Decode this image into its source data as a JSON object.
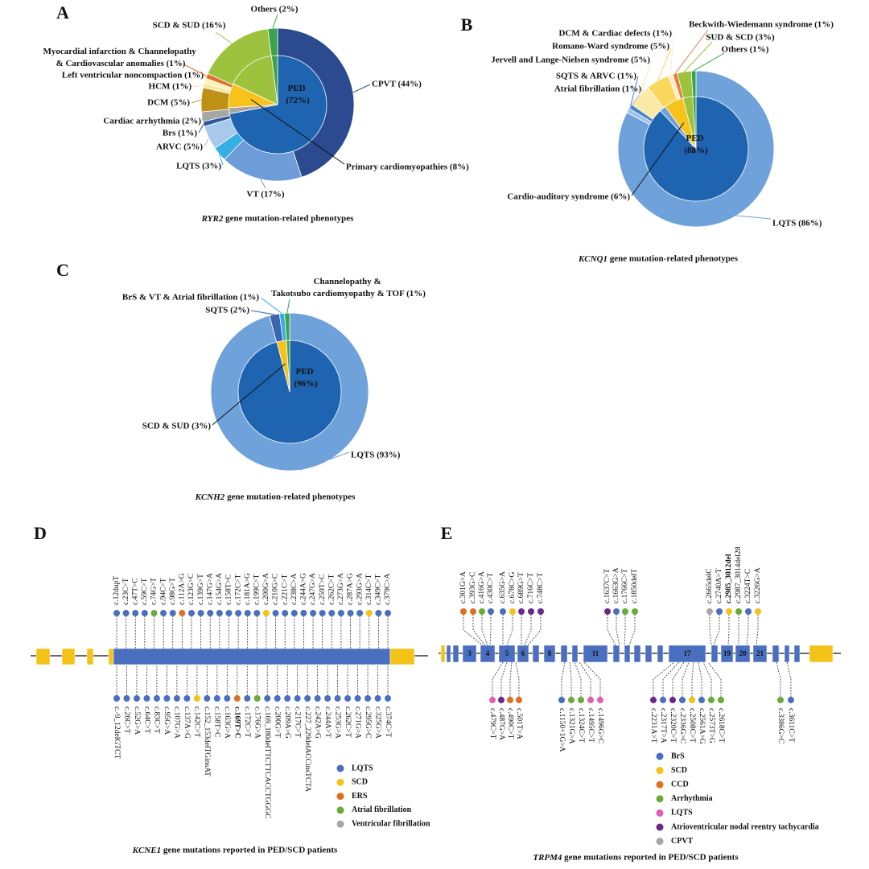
{
  "chart_data": [
    {
      "type": "donut",
      "panel": "A",
      "caption": "RYR2 gene mutation-related phenotypes",
      "highlight_color": "#d42020",
      "outer": {
        "categories": [
          "CPVT (44%)",
          "VT (17%)",
          "LQTS (3%)",
          "ARVC (5%)",
          "Brs (1%)",
          "Cardiac arrhythmia (2%)",
          "DCM (5%)",
          "HCM (1%)",
          "Left ventricular noncompaction (1%)",
          "Myocardial infarction & Channelopathy & Cardiovascular anomalies (1%)",
          "SCD & SUD (16%)",
          "Others (2%)"
        ],
        "values": [
          44,
          17,
          3,
          5,
          1,
          2,
          5,
          1,
          1,
          1,
          16,
          2
        ],
        "colors": [
          "#2b4a8f",
          "#6d9cd8",
          "#35aee3",
          "#a9c9ec",
          "#2f5597",
          "#a6a6a6",
          "#bf9016",
          "#f6e7a2",
          "#fff2b8",
          "#e2702c",
          "#9cc23e",
          "#3aa14f"
        ],
        "highlight": [
          5
        ]
      },
      "inner": {
        "categories": [
          "PED (72%)",
          null,
          "Primary cardiomyopathies (8%)",
          null,
          null
        ],
        "values": [
          72,
          2,
          8,
          16,
          2
        ],
        "colors": [
          "#1f64b0",
          "#a6a6a6",
          "#f7c21a",
          "#9cc23e",
          "#3aa14f"
        ],
        "highlight": []
      }
    },
    {
      "type": "donut",
      "panel": "B",
      "caption": "KCNQ1 gene mutation-related phenotypes",
      "highlight_color": "#d42020",
      "outer": {
        "categories": [
          "LQTS (86%)",
          "Atrial fibrillation (1%)",
          "SQTS & ARVC (1%)",
          "Jervell and Lange-Nielsen syndrome (5%)",
          "Romano-Ward syndrome (5%)",
          "DCM & Cardiac defects (1%)",
          "Beckwith-Wiedemann syndrome (1%)",
          "SUD & SCD (3%)",
          "Others (1%)"
        ],
        "values": [
          86,
          1,
          1,
          5,
          5,
          1,
          1,
          3,
          1
        ],
        "colors": [
          "#6fa2da",
          "#9dc3ea",
          "#4a86c8",
          "#fbe9a6",
          "#f9d75c",
          "#fbeecb",
          "#e8803a",
          "#9cc23e",
          "#3aa14f"
        ],
        "highlight": [
          0
        ]
      },
      "inner": {
        "categories": [
          "PED (88%)",
          null,
          "Cardio-auditory syndrome (6%)",
          null,
          null
        ],
        "values": [
          88,
          2,
          6,
          3,
          1
        ],
        "colors": [
          "#1f64b0",
          "#6fa2da",
          "#f7c21a",
          "#9cc23e",
          "#3aa14f"
        ],
        "highlight": []
      }
    },
    {
      "type": "donut",
      "panel": "C",
      "caption": "KCNH2 gene mutation-related phenotypes",
      "highlight_color": "#d42020",
      "outer": {
        "categories": [
          "LQTS (93%)",
          "SQTS (2%)",
          "BrS & VT & Atrial fibrillation (1%)",
          "Channelopathy & Takotsubo cardiomyopathy & TOF (1%)"
        ],
        "values": [
          93,
          2,
          1,
          1
        ],
        "colors": [
          "#6fa2da",
          "#3c63b0",
          "#35aee3",
          "#3aa14f"
        ],
        "highlight": [
          0
        ]
      },
      "inner": {
        "categories": [
          "PED (96%)",
          "SCD & SUD (3%)",
          null
        ],
        "values": [
          96,
          3,
          1
        ],
        "colors": [
          "#1f64b0",
          "#f7c21a",
          "#3aa14f"
        ],
        "highlight": []
      }
    },
    {
      "type": "lollipop",
      "panel": "D",
      "caption": "KCNE1 gene mutations reported in PED/SCD patients",
      "highlight_color": "#d42020",
      "series": [
        {
          "name": "LQTS",
          "color": "#4a6fc1"
        },
        {
          "name": "SCD",
          "color": "#f5c218"
        },
        {
          "name": "ERS",
          "color": "#e07020"
        },
        {
          "name": "Atrial fibrillation",
          "color": "#6aaa3a"
        },
        {
          "name": "Ventricular fibrillation",
          "color": "#a6a6a6"
        }
      ],
      "top": [
        {
          "label": "c.12dupT",
          "group": 0
        },
        {
          "label": "c.23C>T",
          "group": 0
        },
        {
          "label": "c.47T>C",
          "group": 0
        },
        {
          "label": "c.59C>T",
          "group": 0
        },
        {
          "label": "c.74G>T",
          "group": 3
        },
        {
          "label": "c.94C>T",
          "group": 0
        },
        {
          "label": "c.98G>T",
          "group": 0
        },
        {
          "label": "c.112A>G",
          "group": 2
        },
        {
          "label": "c.123G>C",
          "group": 0
        },
        {
          "label": "c.139G>T",
          "group": 0
        },
        {
          "label": "c.147G>A",
          "group": 0
        },
        {
          "label": "c.154G>A",
          "group": 0
        },
        {
          "label": "c.158T>C",
          "group": 0
        },
        {
          "label": "c.172C>T",
          "group": 0
        },
        {
          "label": "c.181A>G",
          "group": 0
        },
        {
          "label": "c.199C>T",
          "group": 0
        },
        {
          "label": "c.200G>A",
          "group": 1
        },
        {
          "label": "c.210G>C",
          "group": 0
        },
        {
          "label": "c.221C>T",
          "group": 0
        },
        {
          "label": "c.238C>A",
          "group": 0
        },
        {
          "label": "c.244A>G",
          "group": 0
        },
        {
          "label": "c.247G>A",
          "group": 0
        },
        {
          "label": "c.259T>C",
          "group": 0
        },
        {
          "label": "c.262C>T",
          "group": 0
        },
        {
          "label": "c.273G>A",
          "group": 0
        },
        {
          "label": "c.287A>G",
          "group": 0
        },
        {
          "label": "c.293G>A",
          "group": 0
        },
        {
          "label": "c.314C>T",
          "group": 1
        },
        {
          "label": "c.349C>T",
          "group": 0
        },
        {
          "label": "c.379C>A",
          "group": 0
        }
      ],
      "bottom": [
        {
          "label": "c.-9_12delGTCT",
          "group": 0
        },
        {
          "label": "c.26C>T",
          "group": 0
        },
        {
          "label": "c.52G>A",
          "group": 0
        },
        {
          "label": "c.64C>T",
          "group": 0
        },
        {
          "label": "c.83C>T",
          "group": 0
        },
        {
          "label": "c.95G>A",
          "group": 0
        },
        {
          "label": "c.107G>A",
          "group": 0
        },
        {
          "label": "c.137A>G",
          "group": 0
        },
        {
          "label": "c.142C>T",
          "group": 1
        },
        {
          "label": "c.152_153delTGinsAT",
          "group": 0
        },
        {
          "label": "c.158T>C",
          "group": 0
        },
        {
          "label": "c.163G>A",
          "group": 0
        },
        {
          "label": "c.169T>C",
          "group": 2,
          "highlight": true
        },
        {
          "label": "c.172C>T",
          "group": 0
        },
        {
          "label": "c.176G>A",
          "group": 3
        },
        {
          "label": "c.169_180delTTCTTCACCTGGGC",
          "group": 0
        },
        {
          "label": "c.200G>T",
          "group": 0
        },
        {
          "label": "c.209A>G",
          "group": 0
        },
        {
          "label": "c.217C>T",
          "group": 0
        },
        {
          "label": "c.227_229delACCinsTCTA",
          "group": 0
        },
        {
          "label": "c.242A>G",
          "group": 0
        },
        {
          "label": "c.244A>T",
          "group": 0
        },
        {
          "label": "c.253G>A",
          "group": 0
        },
        {
          "label": "c.262C>T",
          "group": 0
        },
        {
          "label": "c.271G>A",
          "group": 0
        },
        {
          "label": "c.295G>C",
          "group": 0
        },
        {
          "label": "c.325G>A",
          "group": 0
        },
        {
          "label": "c.374C>T",
          "group": 0
        }
      ]
    },
    {
      "type": "lollipop",
      "panel": "E",
      "caption": "TRPM4 gene mutations reported in PED/SCD patients",
      "highlight_color": "#d42020",
      "exon_labels": [
        "3",
        "4",
        "5",
        "6",
        "8",
        "11",
        "17",
        "19",
        "20",
        "21"
      ],
      "series": [
        {
          "name": "BrS",
          "color": "#4a6fc1"
        },
        {
          "name": "SCD",
          "color": "#f5c218"
        },
        {
          "name": "CCD",
          "color": "#e07020"
        },
        {
          "name": "Arrhythmia",
          "color": "#6aaa3a"
        },
        {
          "name": "LQTS",
          "color": "#e060b0"
        },
        {
          "name": "Atrioventricular nodal reentry tachycardia",
          "color": "#6a2a8a"
        },
        {
          "name": "CPVT",
          "color": "#a6a6a6"
        }
      ],
      "top": [
        {
          "label": "c.301G>A",
          "group": 2
        },
        {
          "label": "c.393G>C",
          "group": 2
        },
        {
          "label": "c.416G>A",
          "group": 3
        },
        {
          "label": "c.430C>T",
          "group": 0
        },
        {
          "label": "c.635G>A",
          "group": 0
        },
        {
          "label": "c.678C>G",
          "group": 1
        },
        {
          "label": "c.689G>T",
          "group": 5
        },
        {
          "label": "c.716C>T",
          "group": 5
        },
        {
          "label": "c.748C>T",
          "group": 5
        },
        {
          "label": "c.1637C>T",
          "group": 5
        },
        {
          "label": "c.1663G>A",
          "group": 0
        },
        {
          "label": "c.1766C>T",
          "group": 3
        },
        {
          "label": "c.1850delT",
          "group": 3
        },
        {
          "label": "c.2665delC",
          "group": 6
        },
        {
          "label": "c.2740A>T",
          "group": 0
        },
        {
          "label": "c.2985_3012del",
          "group": 1,
          "highlight": true
        },
        {
          "label": "c.2987_3014del28",
          "group": 3
        },
        {
          "label": "c.3224T>C",
          "group": 0
        },
        {
          "label": "c.3226G>A",
          "group": 1
        }
      ],
      "bottom": [
        {
          "label": "c.479C>T",
          "group": 4
        },
        {
          "label": "c.487G>A",
          "group": 5
        },
        {
          "label": "c.490C>T",
          "group": 2
        },
        {
          "label": "c.501T>A",
          "group": 2
        },
        {
          "label": "c.1150+1G>A",
          "group": 0
        },
        {
          "label": "c.1321G>A",
          "group": 3
        },
        {
          "label": "c.1324C>T",
          "group": 3
        },
        {
          "label": "c.1495C>T",
          "group": 4
        },
        {
          "label": "c.1496G>C",
          "group": 4
        },
        {
          "label": "c.2231A>T",
          "group": 5
        },
        {
          "label": "c.2317T>A",
          "group": 0
        },
        {
          "label": "c.2320C>T",
          "group": 5
        },
        {
          "label": "c.2336G>C",
          "group": 0
        },
        {
          "label": "c.2508C>T",
          "group": 1
        },
        {
          "label": "c.2561A>G",
          "group": 0
        },
        {
          "label": "c.2573T>G",
          "group": 3
        },
        {
          "label": "c.2618C>T",
          "group": 3
        },
        {
          "label": "c.3386G>C",
          "group": 3
        },
        {
          "label": "c.3611C>T",
          "group": 0
        }
      ]
    }
  ]
}
